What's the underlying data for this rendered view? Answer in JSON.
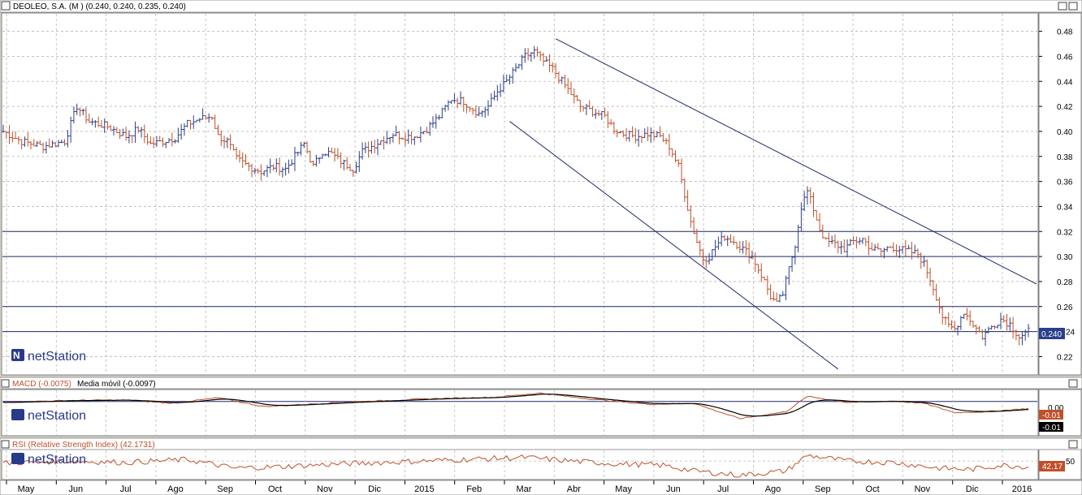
{
  "window": {
    "price_title": "DEOLEO, S.A. (M ) (0.240, 0.240, 0.235, 0.240)",
    "macd_title": "MACD (-0.0075)",
    "macd_ma_title": "Media móvil (-0.0097)",
    "rsi_title": "RSI (Relative Strength Index) (42.1731)",
    "logo_text": "netStation"
  },
  "colors": {
    "up": "#2b3f8c",
    "down": "#c0502a",
    "panel_bg": "#ffffff",
    "frame": "#d4d0c8",
    "grid": "#b8b8b8",
    "hline": "#1f2a6a",
    "last_badge": "#2b3f8c",
    "macd_line": "#000000",
    "macd_signal": "#c0502a",
    "rsi_line": "#c0502a"
  },
  "chart_data": [
    {
      "type": "ohlc",
      "title": "DEOLEO, S.A. (M ) (0.240, 0.240, 0.235, 0.240)",
      "x_labels": [
        "May",
        "Jun",
        "Jul",
        "Ago",
        "Sep",
        "Oct",
        "Nov",
        "Dic",
        "2015",
        "Feb",
        "Mar",
        "Abr",
        "May",
        "Jun",
        "Jul",
        "Ago",
        "Sep",
        "Oct",
        "Nov",
        "Dic",
        "2016"
      ],
      "yticks": [
        "0.48",
        "0.46",
        "0.44",
        "0.42",
        "0.40",
        "0.38",
        "0.36",
        "0.34",
        "0.32",
        "0.30",
        "0.28",
        "0.26",
        "0.24",
        "0.22"
      ],
      "ylim": [
        0.206,
        0.494
      ],
      "grid": true,
      "last_value_label": "0.240",
      "horizontal_levels": [
        0.32,
        0.3,
        0.26,
        0.24
      ],
      "close_series": [
        [
          0,
          0.4
        ],
        [
          6,
          0.392
        ],
        [
          13,
          0.388
        ],
        [
          20,
          0.392
        ],
        [
          24,
          0.42
        ],
        [
          28,
          0.408
        ],
        [
          34,
          0.404
        ],
        [
          40,
          0.396
        ],
        [
          44,
          0.402
        ],
        [
          48,
          0.39
        ],
        [
          52,
          0.392
        ],
        [
          56,
          0.395
        ],
        [
          60,
          0.406
        ],
        [
          64,
          0.41
        ],
        [
          68,
          0.412
        ],
        [
          70,
          0.396
        ],
        [
          73,
          0.392
        ],
        [
          76,
          0.378
        ],
        [
          80,
          0.372
        ],
        [
          84,
          0.368
        ],
        [
          88,
          0.372
        ],
        [
          92,
          0.37
        ],
        [
          95,
          0.38
        ],
        [
          98,
          0.39
        ],
        [
          101,
          0.372
        ],
        [
          104,
          0.384
        ],
        [
          107,
          0.382
        ],
        [
          110,
          0.376
        ],
        [
          114,
          0.37
        ],
        [
          117,
          0.384
        ],
        [
          120,
          0.388
        ],
        [
          124,
          0.394
        ],
        [
          127,
          0.398
        ],
        [
          130,
          0.396
        ],
        [
          134,
          0.396
        ],
        [
          138,
          0.402
        ],
        [
          142,
          0.412
        ],
        [
          146,
          0.426
        ],
        [
          150,
          0.424
        ],
        [
          152,
          0.42
        ],
        [
          155,
          0.414
        ],
        [
          158,
          0.42
        ],
        [
          161,
          0.432
        ],
        [
          164,
          0.44
        ],
        [
          167,
          0.45
        ],
        [
          170,
          0.46
        ],
        [
          173,
          0.464
        ],
        [
          176,
          0.456
        ],
        [
          179,
          0.45
        ],
        [
          182,
          0.44
        ],
        [
          185,
          0.43
        ],
        [
          188,
          0.42
        ],
        [
          192,
          0.416
        ],
        [
          196,
          0.412
        ],
        [
          199,
          0.402
        ],
        [
          202,
          0.398
        ],
        [
          206,
          0.396
        ],
        [
          210,
          0.398
        ],
        [
          214,
          0.396
        ],
        [
          217,
          0.388
        ],
        [
          220,
          0.372
        ],
        [
          222,
          0.35
        ],
        [
          224,
          0.328
        ],
        [
          226,
          0.312
        ],
        [
          228,
          0.298
        ],
        [
          230,
          0.3
        ],
        [
          232,
          0.308
        ],
        [
          235,
          0.316
        ],
        [
          238,
          0.312
        ],
        [
          241,
          0.306
        ],
        [
          244,
          0.3
        ],
        [
          246,
          0.29
        ],
        [
          248,
          0.28
        ],
        [
          250,
          0.268
        ],
        [
          252,
          0.262
        ],
        [
          254,
          0.27
        ],
        [
          256,
          0.29
        ],
        [
          258,
          0.31
        ],
        [
          260,
          0.34
        ],
        [
          262,
          0.352
        ],
        [
          264,
          0.338
        ],
        [
          266,
          0.322
        ],
        [
          268,
          0.312
        ],
        [
          271,
          0.31
        ],
        [
          274,
          0.306
        ],
        [
          277,
          0.312
        ],
        [
          280,
          0.314
        ],
        [
          283,
          0.306
        ],
        [
          286,
          0.304
        ],
        [
          289,
          0.308
        ],
        [
          292,
          0.306
        ],
        [
          295,
          0.304
        ],
        [
          298,
          0.302
        ],
        [
          300,
          0.294
        ],
        [
          302,
          0.282
        ],
        [
          304,
          0.268
        ],
        [
          306,
          0.252
        ],
        [
          308,
          0.244
        ],
        [
          310,
          0.242
        ],
        [
          313,
          0.256
        ],
        [
          316,
          0.246
        ],
        [
          319,
          0.236
        ],
        [
          322,
          0.244
        ],
        [
          325,
          0.25
        ],
        [
          328,
          0.246
        ],
        [
          331,
          0.236
        ],
        [
          334,
          0.24
        ]
      ]
    },
    {
      "type": "line",
      "title": "MACD (-0.0075)",
      "series": [
        {
          "name": "MACD (-0.0075)",
          "last": -0.0075
        },
        {
          "name": "Media móvil (-0.0097)",
          "last": -0.0097
        }
      ],
      "yticks": [
        "0.00"
      ],
      "value_badges": [
        "-0.01",
        "-0.01"
      ],
      "ylim": [
        -0.036,
        0.012
      ],
      "keypoints": [
        [
          0,
          -0.001
        ],
        [
          20,
          0.001
        ],
        [
          40,
          0.0015
        ],
        [
          55,
          -0.002
        ],
        [
          70,
          0.004
        ],
        [
          85,
          -0.0055
        ],
        [
          110,
          -0.001
        ],
        [
          140,
          0.003
        ],
        [
          160,
          0.0045
        ],
        [
          175,
          0.009
        ],
        [
          190,
          0.003
        ],
        [
          210,
          -0.003
        ],
        [
          225,
          -0.002
        ],
        [
          240,
          -0.0185
        ],
        [
          255,
          -0.011
        ],
        [
          262,
          0.0055
        ],
        [
          275,
          -0.001
        ],
        [
          290,
          0.0005
        ],
        [
          300,
          -0.002
        ],
        [
          310,
          -0.012
        ],
        [
          320,
          -0.011
        ],
        [
          334,
          -0.0075
        ]
      ]
    },
    {
      "type": "line",
      "title": "RSI (Relative Strength Index) (42.1731)",
      "series": [
        {
          "name": "RSI (Relative Strength Index) (42.1731)",
          "last": 42.1731
        }
      ],
      "yticks": [
        "50"
      ],
      "last_value_label": "42.17",
      "ylim": [
        25,
        65
      ],
      "keypoints": [
        [
          0,
          47
        ],
        [
          20,
          50
        ],
        [
          40,
          48
        ],
        [
          60,
          52
        ],
        [
          75,
          40
        ],
        [
          90,
          42
        ],
        [
          110,
          46
        ],
        [
          130,
          49
        ],
        [
          150,
          52
        ],
        [
          170,
          55
        ],
        [
          185,
          50
        ],
        [
          200,
          46
        ],
        [
          215,
          44
        ],
        [
          225,
          36
        ],
        [
          240,
          30
        ],
        [
          255,
          36
        ],
        [
          262,
          58
        ],
        [
          275,
          50
        ],
        [
          290,
          48
        ],
        [
          305,
          40
        ],
        [
          315,
          38
        ],
        [
          325,
          44
        ],
        [
          334,
          42
        ]
      ]
    }
  ]
}
